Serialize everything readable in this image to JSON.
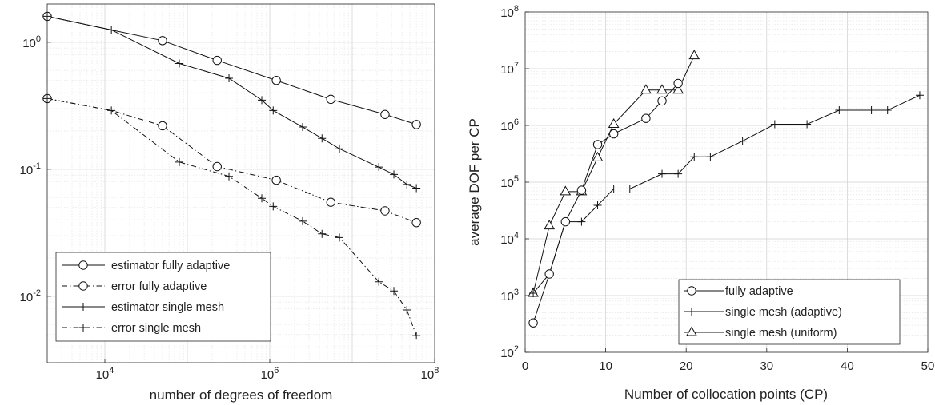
{
  "chart_data": [
    {
      "type": "line",
      "xscale": "log",
      "yscale": "log",
      "xlim": [
        2000,
        100000000
      ],
      "ylim": [
        0.003,
        2
      ],
      "xlabel": "number of degrees of freedom",
      "ylabel": "",
      "xticks": [
        {
          "base": "10",
          "exp": "4"
        },
        {
          "base": "10",
          "exp": "6"
        },
        {
          "base": "10",
          "exp": "8"
        }
      ],
      "yticks": [
        {
          "base": "10",
          "exp": "0",
          "v": 1
        },
        {
          "base": "10",
          "exp": "-1",
          "v": 0.1
        },
        {
          "base": "10",
          "exp": "-2",
          "v": 0.01
        }
      ],
      "grid": true,
      "legend_position": "bottom-left",
      "series": [
        {
          "name": "estimator fully adaptive",
          "marker": "circle",
          "dash": "solid",
          "x": [
            2000,
            12000,
            50000,
            230000,
            1200000,
            5500000,
            25000000,
            60000000
          ],
          "y": [
            1.6,
            1.25,
            1.03,
            0.72,
            0.5,
            0.355,
            0.27,
            0.225
          ],
          "marked": [
            true,
            false,
            true,
            true,
            true,
            true,
            true,
            true
          ]
        },
        {
          "name": "error fully adaptive",
          "marker": "circle",
          "dash": "dashdot",
          "x": [
            2000,
            12000,
            50000,
            230000,
            1200000,
            5500000,
            25000000,
            60000000
          ],
          "y": [
            0.36,
            0.29,
            0.22,
            0.105,
            0.082,
            0.055,
            0.047,
            0.038
          ],
          "marked": [
            true,
            false,
            true,
            true,
            true,
            true,
            true,
            true
          ]
        },
        {
          "name": "estimator single mesh",
          "marker": "plus",
          "dash": "solid",
          "x": [
            2000,
            12000,
            80000,
            320000,
            800000,
            1100000,
            2500000,
            4300000,
            7000000,
            21000000,
            32000000,
            46000000,
            60000000
          ],
          "y": [
            1.6,
            1.25,
            0.68,
            0.52,
            0.35,
            0.29,
            0.215,
            0.175,
            0.145,
            0.104,
            0.091,
            0.076,
            0.071
          ]
        },
        {
          "name": "error single mesh",
          "marker": "plus",
          "dash": "dashdot",
          "x": [
            2000,
            12000,
            80000,
            320000,
            800000,
            1100000,
            2500000,
            4300000,
            7000000,
            21000000,
            32000000,
            46000000,
            60000000
          ],
          "y": [
            0.36,
            0.29,
            0.114,
            0.088,
            0.059,
            0.051,
            0.039,
            0.031,
            0.029,
            0.013,
            0.011,
            0.0078,
            0.0049
          ]
        }
      ]
    },
    {
      "type": "line",
      "xscale": "linear",
      "yscale": "log",
      "xlim": [
        0,
        50
      ],
      "ylim": [
        100,
        100000000
      ],
      "xlabel": "Number of collocation points (CP)",
      "ylabel": "average DOF per CP",
      "xticks": [
        "0",
        "10",
        "20",
        "30",
        "40",
        "50"
      ],
      "yticks": [
        {
          "base": "10",
          "exp": "2",
          "v": 100
        },
        {
          "base": "10",
          "exp": "3",
          "v": 1000
        },
        {
          "base": "10",
          "exp": "4",
          "v": 10000
        },
        {
          "base": "10",
          "exp": "5",
          "v": 100000
        },
        {
          "base": "10",
          "exp": "6",
          "v": 1000000
        },
        {
          "base": "10",
          "exp": "7",
          "v": 10000000
        },
        {
          "base": "10",
          "exp": "8",
          "v": 100000000
        }
      ],
      "grid": true,
      "legend_position": "bottom-right",
      "series": [
        {
          "name": "fully adaptive",
          "marker": "circle",
          "x": [
            1,
            3,
            5,
            7,
            9,
            11,
            15,
            17,
            19
          ],
          "y": [
            330,
            2400,
            20000,
            72000,
            460000,
            710000,
            1330000,
            2700000,
            5500000
          ]
        },
        {
          "name": "single mesh (adaptive)",
          "marker": "plus",
          "x": [
            1,
            3,
            5,
            7,
            9,
            11,
            13,
            17,
            19,
            21,
            23,
            27,
            31,
            35,
            39,
            43,
            45,
            49
          ],
          "y": [
            1100,
            2400,
            20000,
            20000,
            39000,
            76000,
            76000,
            140000,
            140000,
            280000,
            280000,
            530000,
            1050000,
            1050000,
            1850000,
            1850000,
            1850000,
            3400000
          ]
        },
        {
          "name": "single mesh (uniform)",
          "marker": "triangle",
          "x": [
            1,
            3,
            5,
            7,
            9,
            11,
            15,
            17,
            19,
            21
          ],
          "y": [
            1100,
            17000,
            68000,
            68000,
            270000,
            1050000,
            4200000,
            4200000,
            4200000,
            17000000
          ]
        }
      ]
    }
  ]
}
